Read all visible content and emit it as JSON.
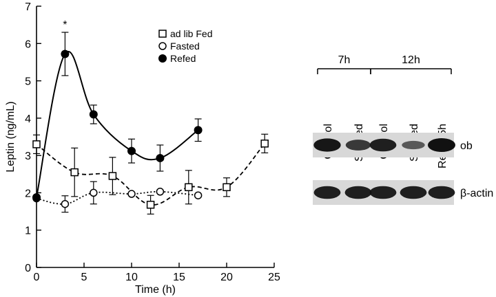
{
  "chart_data": [
    {
      "type": "line",
      "title": "",
      "xlabel": "Time (h)",
      "ylabel": "Leptin (ng/mL)",
      "xlim": [
        0,
        25
      ],
      "ylim": [
        0,
        7
      ],
      "x_ticks": [
        "0",
        "5",
        "10",
        "15",
        "20",
        "25"
      ],
      "y_ticks": [
        "0",
        "1",
        "2",
        "3",
        "4",
        "5",
        "6",
        "7"
      ],
      "grid": false,
      "legend_position": "top-center",
      "annotation": "*",
      "annotation_at": {
        "x": 3,
        "y": 6.3
      },
      "series": [
        {
          "name": "ad lib Fed",
          "marker": "open-square",
          "line_style": "dashed",
          "x": [
            0,
            4,
            8,
            12,
            16,
            20,
            24
          ],
          "y": [
            3.3,
            2.55,
            2.45,
            1.68,
            2.15,
            2.15,
            3.32
          ],
          "error": [
            0.25,
            0.65,
            0.5,
            0.25,
            0.45,
            0.25,
            0.25
          ]
        },
        {
          "name": "Fasted",
          "marker": "open-circle",
          "line_style": "dotted",
          "x": [
            0,
            3,
            6,
            10,
            13,
            17
          ],
          "y": [
            1.85,
            1.7,
            2.0,
            1.97,
            2.03,
            1.93
          ],
          "error": [
            0,
            0.22,
            0.3,
            0,
            0,
            0
          ]
        },
        {
          "name": "Refed",
          "marker": "filled-circle",
          "line_style": "solid",
          "x": [
            0,
            3,
            6,
            10,
            13,
            17
          ],
          "y": [
            1.88,
            5.72,
            4.1,
            3.12,
            2.93,
            3.68
          ],
          "error": [
            0,
            0.58,
            0.25,
            0.32,
            0.35,
            0.3
          ]
        }
      ]
    },
    {
      "type": "table",
      "title": "",
      "groups": [
        {
          "label": "7h",
          "lanes": [
            "Control",
            "Starved"
          ]
        },
        {
          "label": "12h",
          "lanes": [
            "Control",
            "Starved",
            "Refed 5h"
          ]
        }
      ],
      "lanes": [
        "Control",
        "Starved",
        "Control",
        "Starved",
        "Refed 5h"
      ],
      "bands": [
        {
          "name": "ob",
          "intensity": [
            0.95,
            0.7,
            0.9,
            0.45,
            1.0
          ]
        },
        {
          "name": "β-actin",
          "intensity": [
            0.9,
            0.9,
            0.9,
            0.9,
            0.9
          ]
        }
      ],
      "colors": {
        "band": "#111111",
        "background": "#ffffff"
      }
    }
  ]
}
